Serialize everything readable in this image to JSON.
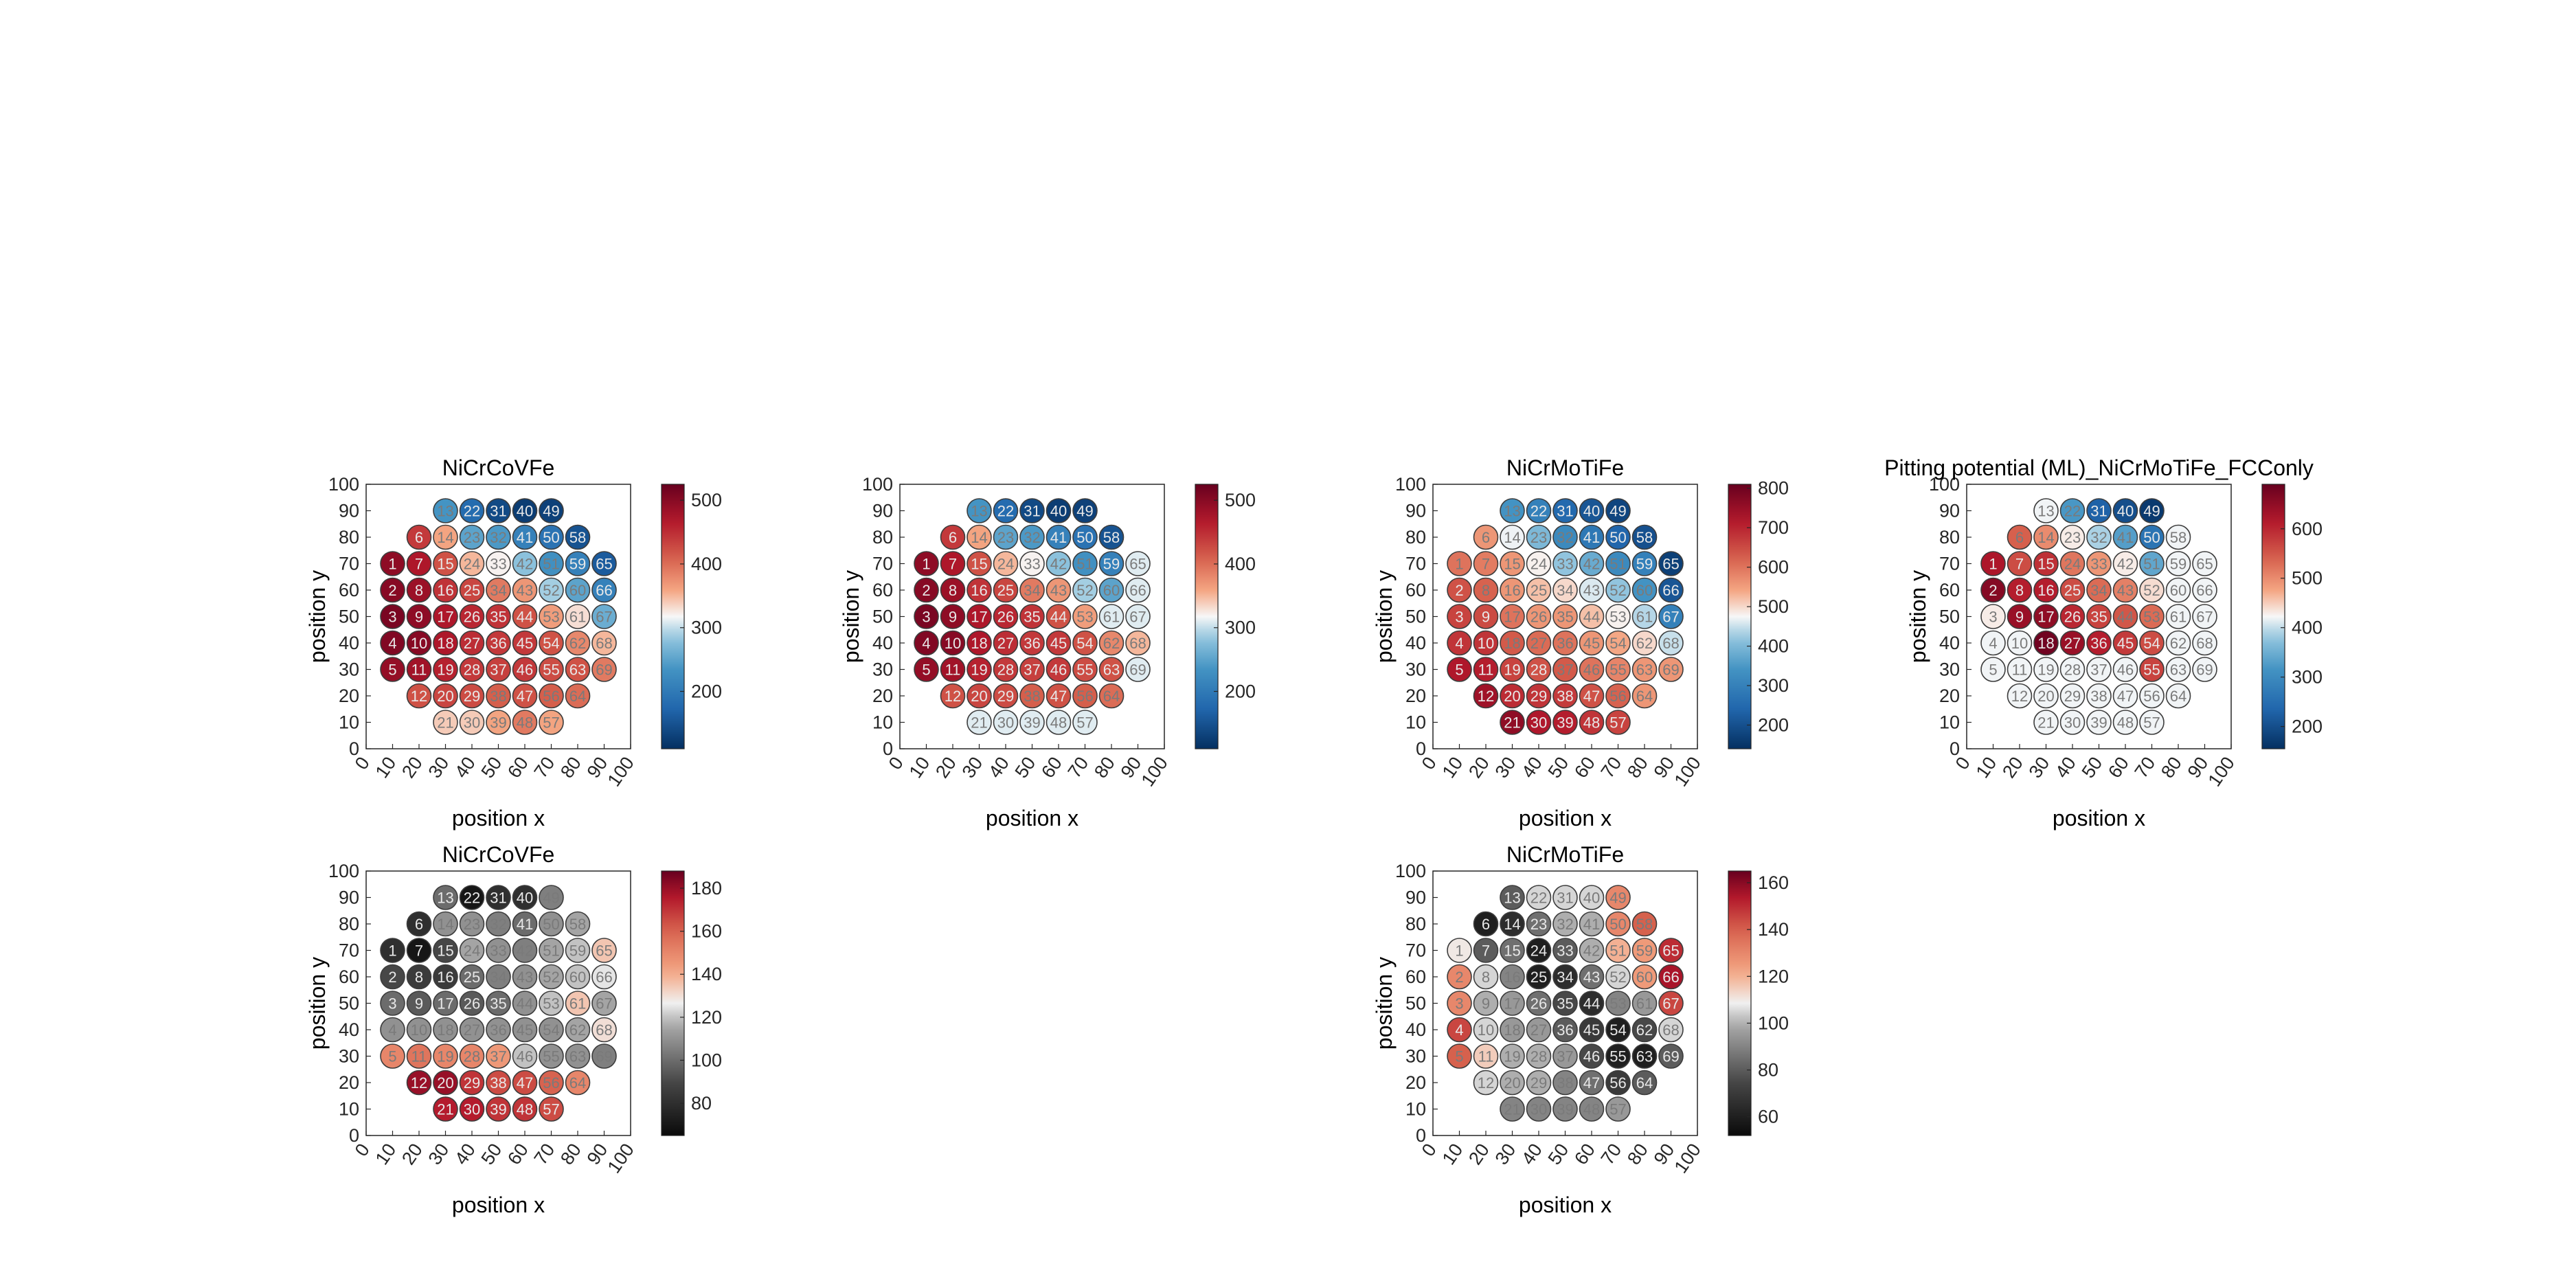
{
  "panels": [
    {
      "title": "NiCrCoVFe",
      "xlabel": "position x",
      "ylabel": "position y",
      "colormap": "rdbu",
      "clim": [
        110,
        525
      ],
      "colorbar_ticks": [
        "200",
        "300",
        "400",
        "500"
      ],
      "colorbar_tick_values": [
        200,
        300,
        400,
        500
      ],
      "values": {
        "1": 495,
        "2": 500,
        "3": 510,
        "4": 505,
        "5": 490,
        "6": 440,
        "7": 470,
        "8": 485,
        "9": 495,
        "10": 500,
        "11": 480,
        "12": 420,
        "13": 235,
        "14": 360,
        "15": 420,
        "16": 445,
        "17": 470,
        "18": 470,
        "19": 460,
        "20": 430,
        "21": 340,
        "22": 180,
        "23": 250,
        "24": 350,
        "25": 430,
        "26": 455,
        "27": 450,
        "28": 440,
        "29": 425,
        "30": 340,
        "31": 140,
        "32": 240,
        "33": 320,
        "34": 390,
        "35": 445,
        "36": 440,
        "37": 435,
        "38": 410,
        "39": 360,
        "40": 125,
        "41": 210,
        "42": 280,
        "43": 370,
        "44": 420,
        "45": 440,
        "46": 440,
        "47": 420,
        "48": 390,
        "49": 130,
        "50": 190,
        "51": 230,
        "52": 290,
        "53": 365,
        "54": 420,
        "55": 425,
        "56": 410,
        "57": 360,
        "58": 150,
        "59": 210,
        "60": 250,
        "61": 330,
        "62": 380,
        "63": 420,
        "64": 400,
        "65": 160,
        "66": 210,
        "67": 260,
        "68": 350,
        "69": 390
      }
    },
    {
      "title": "",
      "xlabel": "position x",
      "ylabel": "position y",
      "colormap": "rdbu",
      "clim": [
        110,
        525
      ],
      "colorbar_ticks": [
        "200",
        "300",
        "400",
        "500"
      ],
      "colorbar_tick_values": [
        200,
        300,
        400,
        500
      ],
      "values": {
        "1": 495,
        "2": 500,
        "3": 510,
        "4": 505,
        "5": 490,
        "6": 440,
        "7": 470,
        "8": 485,
        "9": 495,
        "10": 500,
        "11": 480,
        "12": 420,
        "13": 235,
        "14": 360,
        "15": 420,
        "16": 445,
        "17": 470,
        "18": 470,
        "19": 460,
        "20": 430,
        "21": 310,
        "22": 180,
        "23": 250,
        "24": 350,
        "25": 430,
        "26": 455,
        "27": 450,
        "28": 440,
        "29": 425,
        "30": 310,
        "31": 140,
        "32": 240,
        "33": 320,
        "34": 390,
        "35": 445,
        "36": 440,
        "37": 435,
        "38": 410,
        "39": 310,
        "40": 125,
        "41": 210,
        "42": 280,
        "43": 370,
        "44": 420,
        "45": 440,
        "46": 440,
        "47": 420,
        "48": 310,
        "49": 130,
        "50": 190,
        "51": 230,
        "52": 290,
        "53": 365,
        "54": 420,
        "55": 425,
        "56": 410,
        "57": 310,
        "58": 150,
        "59": 210,
        "60": 250,
        "61": 310,
        "62": 380,
        "63": 420,
        "64": 400,
        "65": 310,
        "66": 310,
        "67": 310,
        "68": 350,
        "69": 310
      }
    },
    {
      "title": "NiCrMoTiFe",
      "xlabel": "position x",
      "ylabel": "position y",
      "colormap": "rdbu",
      "clim": [
        140,
        810
      ],
      "colorbar_ticks": [
        "200",
        "300",
        "400",
        "500",
        "600",
        "700",
        "800"
      ],
      "colorbar_tick_values": [
        200,
        300,
        400,
        500,
        600,
        700,
        800
      ],
      "values": {
        "1": 600,
        "2": 640,
        "3": 660,
        "4": 680,
        "5": 720,
        "6": 560,
        "7": 590,
        "8": 620,
        "9": 650,
        "10": 680,
        "11": 710,
        "12": 740,
        "13": 340,
        "14": 470,
        "15": 560,
        "16": 560,
        "17": 600,
        "18": 630,
        "19": 660,
        "20": 690,
        "21": 760,
        "22": 300,
        "23": 400,
        "24": 480,
        "25": 520,
        "26": 560,
        "27": 610,
        "28": 640,
        "29": 680,
        "30": 720,
        "31": 250,
        "32": 320,
        "33": 420,
        "34": 500,
        "35": 560,
        "36": 600,
        "37": 630,
        "38": 670,
        "39": 710,
        "40": 210,
        "41": 280,
        "42": 380,
        "43": 460,
        "44": 520,
        "45": 560,
        "46": 600,
        "47": 640,
        "48": 680,
        "49": 180,
        "50": 240,
        "51": 320,
        "52": 420,
        "53": 480,
        "54": 540,
        "55": 580,
        "56": 620,
        "57": 660,
        "58": 200,
        "59": 300,
        "60": 340,
        "61": 440,
        "62": 500,
        "63": 560,
        "64": 560,
        "65": 170,
        "66": 210,
        "67": 300,
        "68": 450,
        "69": 560
      }
    },
    {
      "title": "Pitting potential (ML)_NiCrMoTiFe_FCConly",
      "xlabel": "position x",
      "ylabel": "position y",
      "colormap": "rdbu",
      "clim": [
        155,
        690
      ],
      "colorbar_ticks": [
        "200",
        "300",
        "400",
        "500",
        "600"
      ],
      "colorbar_tick_values": [
        200,
        300,
        400,
        500,
        600
      ],
      "values": {
        "1": 620,
        "2": 660,
        "3": 430,
        "4": 420,
        "5": 420,
        "6": 540,
        "7": 560,
        "8": 610,
        "9": 640,
        "10": 420,
        "11": 420,
        "12": 420,
        "13": 420,
        "14": 500,
        "15": 590,
        "16": 610,
        "17": 650,
        "18": 680,
        "19": 420,
        "20": 420,
        "21": 420,
        "22": 320,
        "23": 430,
        "24": 520,
        "25": 560,
        "26": 600,
        "27": 640,
        "28": 420,
        "29": 420,
        "30": 420,
        "31": 230,
        "32": 390,
        "33": 490,
        "34": 530,
        "35": 570,
        "36": 610,
        "37": 420,
        "38": 420,
        "39": 420,
        "40": 200,
        "41": 330,
        "42": 430,
        "43": 510,
        "44": 550,
        "45": 580,
        "46": 420,
        "47": 420,
        "48": 420,
        "49": 170,
        "50": 260,
        "51": 340,
        "52": 440,
        "53": 530,
        "54": 560,
        "55": 570,
        "56": 420,
        "57": 420,
        "58": 420,
        "59": 420,
        "60": 420,
        "61": 420,
        "62": 420,
        "63": 420,
        "64": 420,
        "65": 420,
        "66": 420,
        "67": 420,
        "68": 420,
        "69": 420
      }
    },
    {
      "title": "NiCrCoVFe",
      "xlabel": "position x",
      "ylabel": "position y",
      "colormap": "gray-red",
      "clim": [
        65,
        188
      ],
      "colorbar_ticks": [
        "80",
        "100",
        "120",
        "140",
        "160",
        "180"
      ],
      "colorbar_tick_values": [
        80,
        100,
        120,
        140,
        160,
        180
      ],
      "values": {
        "1": 80,
        "2": 90,
        "3": 100,
        "4": 110,
        "5": 150,
        "6": 80,
        "7": 70,
        "8": 85,
        "9": 95,
        "10": 110,
        "11": 155,
        "12": 180,
        "13": 100,
        "14": 110,
        "15": 90,
        "16": 85,
        "17": 100,
        "18": 110,
        "19": 150,
        "20": 180,
        "21": 175,
        "22": 70,
        "23": 110,
        "24": 115,
        "25": 100,
        "26": 95,
        "27": 110,
        "28": 150,
        "29": 170,
        "30": 175,
        "31": 80,
        "32": 105,
        "33": 110,
        "34": 105,
        "35": 100,
        "36": 110,
        "37": 145,
        "38": 165,
        "39": 170,
        "40": 80,
        "41": 100,
        "42": 105,
        "43": 110,
        "44": 110,
        "45": 110,
        "46": 120,
        "47": 165,
        "48": 170,
        "49": 105,
        "50": 110,
        "51": 115,
        "52": 115,
        "53": 120,
        "54": 110,
        "55": 110,
        "56": 160,
        "57": 165,
        "58": 115,
        "59": 120,
        "60": 120,
        "61": 135,
        "62": 115,
        "63": 110,
        "64": 150,
        "65": 135,
        "66": 125,
        "67": 115,
        "68": 130,
        "69": 105
      }
    },
    {
      "title": "NiCrMoTiFe",
      "xlabel": "position x",
      "ylabel": "position y",
      "colormap": "gray-red",
      "clim": [
        52,
        165
      ],
      "colorbar_ticks": [
        "60",
        "80",
        "100",
        "120",
        "140",
        "160"
      ],
      "colorbar_tick_values": [
        60,
        80,
        100,
        120,
        140,
        160
      ],
      "values": {
        "1": 110,
        "2": 130,
        "3": 130,
        "4": 145,
        "5": 140,
        "6": 60,
        "7": 80,
        "8": 105,
        "9": 100,
        "10": 105,
        "11": 115,
        "12": 105,
        "13": 80,
        "14": 65,
        "15": 85,
        "16": 90,
        "17": 95,
        "18": 95,
        "19": 100,
        "20": 100,
        "21": 90,
        "22": 105,
        "23": 85,
        "24": 60,
        "25": 60,
        "26": 85,
        "27": 95,
        "28": 100,
        "29": 100,
        "30": 90,
        "31": 105,
        "32": 100,
        "33": 80,
        "34": 65,
        "35": 75,
        "36": 80,
        "37": 95,
        "38": 90,
        "39": 90,
        "40": 105,
        "41": 100,
        "42": 100,
        "43": 85,
        "44": 65,
        "45": 70,
        "46": 75,
        "47": 85,
        "48": 90,
        "49": 130,
        "50": 130,
        "51": 120,
        "52": 105,
        "53": 90,
        "54": 60,
        "55": 60,
        "56": 70,
        "57": 95,
        "58": 140,
        "59": 125,
        "60": 125,
        "61": 95,
        "62": 75,
        "63": 60,
        "64": 80,
        "65": 150,
        "66": 155,
        "67": 145,
        "68": 105,
        "69": 80
      }
    }
  ],
  "axis_ticks": {
    "x": [
      "0",
      "10",
      "20",
      "30",
      "40",
      "50",
      "60",
      "70",
      "80",
      "90",
      "100"
    ],
    "y": [
      "0",
      "10",
      "20",
      "30",
      "40",
      "50",
      "60",
      "70",
      "80",
      "90",
      "100"
    ]
  },
  "wafer_points": {
    "label_order": "columns left-to-right, rows top-to-bottom",
    "columns": [
      {
        "x": 10,
        "y": [
          70,
          60,
          50,
          40,
          30
        ],
        "ids": [
          1,
          2,
          3,
          4,
          5
        ]
      },
      {
        "x": 20,
        "y": [
          80,
          70,
          60,
          50,
          40,
          30,
          20
        ],
        "ids": [
          6,
          7,
          8,
          9,
          10,
          11,
          12
        ]
      },
      {
        "x": 30,
        "y": [
          90,
          80,
          70,
          60,
          50,
          40,
          30,
          20,
          10
        ],
        "ids": [
          13,
          14,
          15,
          16,
          17,
          18,
          19,
          20,
          21
        ]
      },
      {
        "x": 40,
        "y": [
          90,
          80,
          70,
          60,
          50,
          40,
          30,
          20,
          10
        ],
        "ids": [
          22,
          23,
          24,
          25,
          26,
          27,
          28,
          29,
          30
        ]
      },
      {
        "x": 50,
        "y": [
          90,
          80,
          70,
          60,
          50,
          40,
          30,
          20,
          10
        ],
        "ids": [
          31,
          32,
          33,
          34,
          35,
          36,
          37,
          38,
          39
        ]
      },
      {
        "x": 60,
        "y": [
          90,
          80,
          70,
          60,
          50,
          40,
          30,
          20,
          10
        ],
        "ids": [
          40,
          41,
          42,
          43,
          44,
          45,
          46,
          47,
          48
        ]
      },
      {
        "x": 70,
        "y": [
          90,
          80,
          70,
          60,
          50,
          40,
          30,
          20,
          10
        ],
        "ids": [
          49,
          50,
          51,
          52,
          53,
          54,
          55,
          56,
          57
        ]
      },
      {
        "x": 80,
        "y": [
          80,
          70,
          60,
          50,
          40,
          30,
          20
        ],
        "ids": [
          58,
          59,
          60,
          61,
          62,
          63,
          64
        ]
      },
      {
        "x": 90,
        "y": [
          70,
          60,
          50,
          40,
          30
        ],
        "ids": [
          65,
          66,
          67,
          68,
          69
        ]
      }
    ]
  },
  "chart_data": {
    "type": "scatter",
    "description_of_marks": "Six wafer-map scatter panels; each of 69 numbered measurement points is a circle colored by value",
    "xlim": [
      0,
      100
    ],
    "ylim": [
      0,
      100
    ],
    "xlabel": "position x",
    "ylabel": "position y",
    "panel_titles": [
      "NiCrCoVFe",
      "",
      "NiCrMoTiFe",
      "Pitting potential (ML)_NiCrMoTiFe_FCConly",
      "NiCrCoVFe",
      "NiCrMoTiFe"
    ],
    "grid": false,
    "colorbar": "right of each panel"
  }
}
